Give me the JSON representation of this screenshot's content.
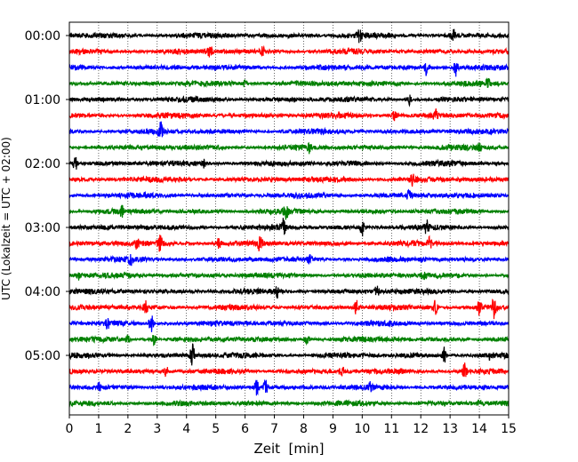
{
  "chart_data": {
    "type": "line",
    "title": "",
    "xlabel": "Zeit  [min]",
    "ylabel": "UTC (Lokalzeit = UTC + 02:00)",
    "xlim": [
      0,
      15
    ],
    "x_ticks": [
      0,
      1,
      2,
      3,
      4,
      5,
      6,
      7,
      8,
      9,
      10,
      11,
      12,
      13,
      14,
      15
    ],
    "y_tick_labels": [
      "00:00",
      "01:00",
      "02:00",
      "03:00",
      "04:00",
      "05:00"
    ],
    "y_tick_row_index": [
      0,
      4,
      8,
      12,
      16,
      20
    ],
    "row_interval_minutes": 15,
    "grid": "vertical dotted lines at each minute",
    "row_colors": [
      "#000000",
      "#ff0000",
      "#0000ff",
      "#008000"
    ],
    "rows": [
      {
        "start": "00:00",
        "events": [
          [
            9.9,
            0.7
          ],
          [
            13.1,
            0.8
          ]
        ]
      },
      {
        "start": "00:15",
        "events": [
          [
            4.8,
            0.8
          ],
          [
            6.6,
            0.5
          ]
        ]
      },
      {
        "start": "00:30",
        "events": [
          [
            12.2,
            1.0
          ],
          [
            13.2,
            1.0
          ]
        ]
      },
      {
        "start": "00:45",
        "events": [
          [
            6.0,
            0.4
          ],
          [
            14.3,
            0.4
          ]
        ]
      },
      {
        "start": "01:00",
        "events": [
          [
            11.6,
            0.7
          ]
        ]
      },
      {
        "start": "01:15",
        "events": [
          [
            11.1,
            0.6
          ],
          [
            12.5,
            0.7
          ]
        ]
      },
      {
        "start": "01:30",
        "events": [
          [
            3.1,
            1.2
          ]
        ]
      },
      {
        "start": "01:45",
        "events": [
          [
            8.2,
            0.5
          ],
          [
            14.0,
            0.4
          ]
        ]
      },
      {
        "start": "02:00",
        "events": [
          [
            0.2,
            1.0
          ],
          [
            4.6,
            0.4
          ]
        ]
      },
      {
        "start": "02:15",
        "events": [
          [
            11.7,
            0.8
          ]
        ]
      },
      {
        "start": "02:30",
        "events": [
          [
            11.6,
            0.6
          ]
        ]
      },
      {
        "start": "02:45",
        "events": [
          [
            1.8,
            0.5
          ],
          [
            7.4,
            0.8
          ]
        ]
      },
      {
        "start": "03:00",
        "events": [
          [
            7.3,
            1.0
          ],
          [
            10.0,
            1.0
          ],
          [
            12.2,
            0.7
          ]
        ]
      },
      {
        "start": "03:15",
        "events": [
          [
            2.3,
            0.6
          ],
          [
            3.1,
            0.9
          ],
          [
            5.1,
            0.7
          ],
          [
            6.5,
            0.8
          ],
          [
            12.3,
            0.7
          ]
        ]
      },
      {
        "start": "03:30",
        "events": [
          [
            2.1,
            0.5
          ],
          [
            8.2,
            0.4
          ]
        ]
      },
      {
        "start": "03:45",
        "events": [
          [
            0.3,
            0.5
          ],
          [
            12.1,
            0.7
          ]
        ]
      },
      {
        "start": "04:00",
        "events": [
          [
            7.1,
            0.6
          ],
          [
            10.5,
            0.6
          ]
        ]
      },
      {
        "start": "04:15",
        "events": [
          [
            2.6,
            0.7
          ],
          [
            9.8,
            0.8
          ],
          [
            12.5,
            0.8
          ],
          [
            14.0,
            0.9
          ],
          [
            14.5,
            1.2
          ]
        ]
      },
      {
        "start": "04:30",
        "events": [
          [
            1.3,
            0.5
          ],
          [
            2.8,
            1.3
          ]
        ]
      },
      {
        "start": "04:45",
        "events": [
          [
            2.0,
            0.5
          ],
          [
            2.9,
            0.7
          ],
          [
            8.1,
            0.6
          ]
        ]
      },
      {
        "start": "05:00",
        "events": [
          [
            4.2,
            1.4
          ],
          [
            12.8,
            1.0
          ],
          [
            14.4,
            0.6
          ]
        ]
      },
      {
        "start": "05:15",
        "events": [
          [
            3.3,
            0.6
          ],
          [
            9.3,
            0.8
          ],
          [
            13.5,
            0.9
          ]
        ]
      },
      {
        "start": "05:30",
        "events": [
          [
            1.0,
            0.6
          ],
          [
            6.4,
            1.1
          ],
          [
            6.7,
            0.9
          ],
          [
            10.3,
            0.6
          ]
        ]
      },
      {
        "start": "05:45",
        "events": [
          [
            14.0,
            0.4
          ]
        ]
      }
    ]
  }
}
